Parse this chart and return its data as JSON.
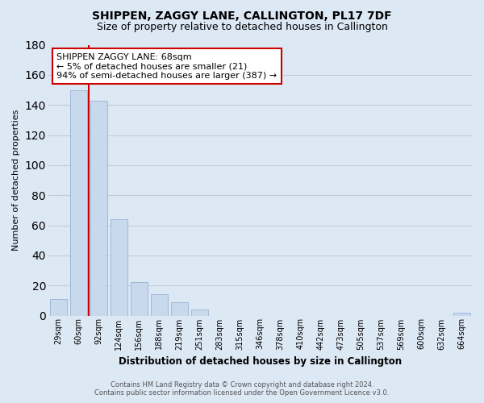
{
  "title": "SHIPPEN, ZAGGY LANE, CALLINGTON, PL17 7DF",
  "subtitle": "Size of property relative to detached houses in Callington",
  "xlabel": "Distribution of detached houses by size in Callington",
  "ylabel": "Number of detached properties",
  "bar_labels": [
    "29sqm",
    "60sqm",
    "92sqm",
    "124sqm",
    "156sqm",
    "188sqm",
    "219sqm",
    "251sqm",
    "283sqm",
    "315sqm",
    "346sqm",
    "378sqm",
    "410sqm",
    "442sqm",
    "473sqm",
    "505sqm",
    "537sqm",
    "569sqm",
    "600sqm",
    "632sqm",
    "664sqm"
  ],
  "bar_values": [
    11,
    150,
    143,
    64,
    22,
    14,
    9,
    4,
    0,
    0,
    0,
    0,
    0,
    0,
    0,
    0,
    0,
    0,
    0,
    0,
    2
  ],
  "bar_fill": "#c8d9ed",
  "bar_edge": "#a0b8d8",
  "vline_color": "#cc0000",
  "annotation_title": "SHIPPEN ZAGGY LANE: 68sqm",
  "annotation_line1": "← 5% of detached houses are smaller (21)",
  "annotation_line2": "94% of semi-detached houses are larger (387) →",
  "annotation_box_color": "#ffffff",
  "annotation_box_edge": "#cc0000",
  "ylim": [
    0,
    180
  ],
  "yticks": [
    0,
    20,
    40,
    60,
    80,
    100,
    120,
    140,
    160,
    180
  ],
  "footer_line1": "Contains HM Land Registry data © Crown copyright and database right 2024.",
  "footer_line2": "Contains public sector information licensed under the Open Government Licence v3.0.",
  "bg_color": "#dde8f5",
  "grid_color": "#c0ccda",
  "title_fontsize": 10,
  "subtitle_fontsize": 9
}
